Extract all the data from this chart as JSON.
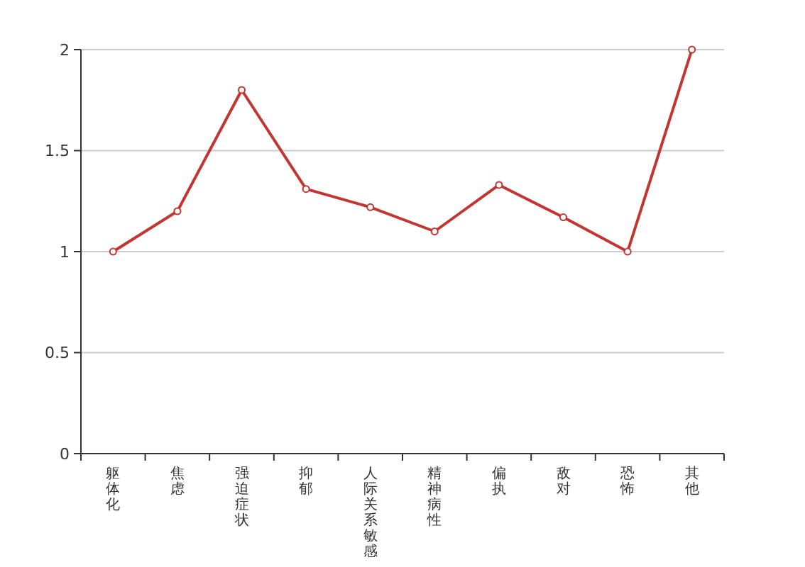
{
  "chart_data": {
    "type": "line",
    "categories": [
      "躯体化",
      "焦虑",
      "强迫症状",
      "抑郁",
      "人际关系敏感",
      "精神病性",
      "偏执",
      "敌对",
      "恐怖",
      "其他"
    ],
    "series": [
      {
        "color": "#c23531",
        "values": [
          1,
          1.2,
          1.8,
          1.31,
          1.22,
          1.1,
          1.33,
          1.17,
          1,
          2
        ]
      }
    ],
    "ylim": [
      0,
      2
    ],
    "yticks": [
      0,
      0.5,
      1,
      1.5,
      2
    ],
    "grid": "y",
    "marker": "circle"
  }
}
